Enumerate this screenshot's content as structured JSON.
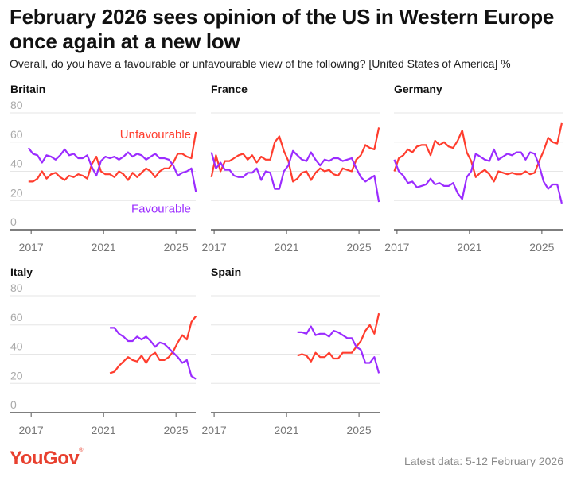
{
  "title": "February 2026 sees opinion of the US in Western Europe once again at a new low",
  "subtitle": "Overall, do you have a favourable or unfavourable view of the following? [United States of America] %",
  "logo": "YouGov",
  "footer": "Latest data: 5-12 February 2026",
  "colors": {
    "unfavourable": "#ff3d2e",
    "favourable": "#9b2cff",
    "grid": "#e6e6e6",
    "axis": "#555555",
    "tick_label": "#aaaaaa"
  },
  "chart_data": [
    {
      "type": "line",
      "title": "Britain",
      "ylim": [
        0,
        80
      ],
      "yticks": [
        "0",
        "20",
        "40",
        "60",
        "80"
      ],
      "xticks": [
        "2017",
        "2021",
        "2025"
      ],
      "grid": true,
      "annotations": {
        "unfavourable": "Unfavourable",
        "favourable": "Favourable"
      },
      "x": [
        2016.85,
        2017.1,
        2017.35,
        2017.6,
        2017.85,
        2018.1,
        2018.35,
        2018.6,
        2018.85,
        2019.1,
        2019.35,
        2019.6,
        2019.85,
        2020.1,
        2020.35,
        2020.6,
        2020.85,
        2021.1,
        2021.35,
        2021.6,
        2021.85,
        2022.1,
        2022.35,
        2022.6,
        2022.85,
        2023.1,
        2023.35,
        2023.6,
        2023.85,
        2024.1,
        2024.35,
        2024.6,
        2024.85,
        2025.1,
        2025.35,
        2025.6,
        2025.85,
        2026.1
      ],
      "series": [
        {
          "name": "Unfavourable",
          "values": [
            33,
            33,
            35,
            40,
            35,
            38,
            39,
            36,
            34,
            37,
            36,
            38,
            37,
            35,
            45,
            50,
            40,
            38,
            38,
            36,
            40,
            38,
            34,
            39,
            36,
            39,
            42,
            40,
            36,
            40,
            42,
            42,
            46,
            52,
            52,
            50,
            49,
            67
          ]
        },
        {
          "name": "Favourable",
          "values": [
            56,
            52,
            51,
            46,
            51,
            50,
            48,
            51,
            55,
            51,
            52,
            49,
            49,
            51,
            43,
            37,
            47,
            50,
            49,
            50,
            48,
            50,
            53,
            50,
            52,
            51,
            48,
            50,
            52,
            49,
            49,
            48,
            44,
            37,
            39,
            40,
            42,
            26
          ]
        }
      ]
    },
    {
      "type": "line",
      "title": "France",
      "ylim": [
        0,
        80
      ],
      "xticks": [
        "2017",
        "2021",
        "2025"
      ],
      "grid": true,
      "x": [
        2016.85,
        2017.1,
        2017.35,
        2017.6,
        2017.85,
        2018.1,
        2018.35,
        2018.6,
        2018.85,
        2019.1,
        2019.35,
        2019.6,
        2019.85,
        2020.1,
        2020.35,
        2020.6,
        2020.85,
        2021.1,
        2021.35,
        2021.6,
        2021.85,
        2022.1,
        2022.35,
        2022.6,
        2022.85,
        2023.1,
        2023.35,
        2023.6,
        2023.85,
        2024.1,
        2024.35,
        2024.6,
        2024.85,
        2025.1,
        2025.35,
        2025.6,
        2025.85,
        2026.1
      ],
      "series": [
        {
          "name": "Unfavourable",
          "values": [
            36,
            51,
            40,
            47,
            47,
            49,
            51,
            52,
            48,
            51,
            46,
            50,
            48,
            48,
            60,
            64,
            54,
            47,
            33,
            35,
            39,
            40,
            34,
            39,
            42,
            40,
            41,
            38,
            37,
            42,
            41,
            40,
            48,
            51,
            58,
            56,
            55,
            70
          ]
        },
        {
          "name": "Favourable",
          "values": [
            53,
            42,
            46,
            41,
            41,
            37,
            36,
            36,
            39,
            39,
            42,
            34,
            40,
            39,
            28,
            28,
            40,
            44,
            54,
            51,
            48,
            47,
            53,
            48,
            44,
            48,
            47,
            49,
            49,
            47,
            48,
            49,
            42,
            36,
            33,
            35,
            37,
            19
          ]
        }
      ]
    },
    {
      "type": "line",
      "title": "Germany",
      "ylim": [
        0,
        80
      ],
      "xticks": [
        "2017",
        "2021",
        "2025"
      ],
      "grid": true,
      "x": [
        2016.85,
        2017.1,
        2017.35,
        2017.6,
        2017.85,
        2018.1,
        2018.35,
        2018.6,
        2018.85,
        2019.1,
        2019.35,
        2019.6,
        2019.85,
        2020.1,
        2020.35,
        2020.6,
        2020.85,
        2021.1,
        2021.35,
        2021.6,
        2021.85,
        2022.1,
        2022.35,
        2022.6,
        2022.85,
        2023.1,
        2023.35,
        2023.6,
        2023.85,
        2024.1,
        2024.35,
        2024.6,
        2024.85,
        2025.1,
        2025.35,
        2025.6,
        2025.85,
        2026.1
      ],
      "series": [
        {
          "name": "Unfavourable",
          "values": [
            40,
            49,
            51,
            55,
            53,
            57,
            58,
            58,
            51,
            61,
            58,
            60,
            57,
            56,
            61,
            68,
            53,
            47,
            36,
            39,
            41,
            38,
            33,
            40,
            39,
            38,
            39,
            38,
            38,
            40,
            38,
            39,
            47,
            54,
            63,
            60,
            59,
            73
          ]
        },
        {
          "name": "Favourable",
          "values": [
            48,
            40,
            37,
            32,
            33,
            29,
            30,
            31,
            35,
            31,
            32,
            30,
            30,
            32,
            25,
            21,
            36,
            40,
            52,
            50,
            48,
            47,
            55,
            48,
            50,
            52,
            51,
            53,
            53,
            48,
            53,
            52,
            44,
            33,
            28,
            31,
            31,
            18
          ]
        }
      ]
    },
    {
      "type": "line",
      "title": "Italy",
      "ylim": [
        0,
        80
      ],
      "yticks": [
        "0",
        "20",
        "40",
        "60",
        "80"
      ],
      "xticks": [
        "2017",
        "2021",
        "2025"
      ],
      "grid": true,
      "x": [
        2021.35,
        2021.6,
        2021.85,
        2022.1,
        2022.35,
        2022.6,
        2022.85,
        2023.1,
        2023.35,
        2023.6,
        2023.85,
        2024.1,
        2024.35,
        2024.6,
        2024.85,
        2025.1,
        2025.35,
        2025.6,
        2025.85,
        2026.1
      ],
      "series": [
        {
          "name": "Unfavourable",
          "values": [
            27,
            28,
            32,
            35,
            38,
            36,
            35,
            39,
            34,
            39,
            41,
            36,
            36,
            38,
            42,
            48,
            53,
            50,
            62,
            66
          ]
        },
        {
          "name": "Favourable",
          "values": [
            58,
            58,
            54,
            52,
            49,
            49,
            52,
            50,
            52,
            49,
            45,
            48,
            47,
            44,
            41,
            38,
            34,
            36,
            25,
            23
          ]
        }
      ]
    },
    {
      "type": "line",
      "title": "Spain",
      "ylim": [
        0,
        80
      ],
      "xticks": [
        "2017",
        "2021",
        "2025"
      ],
      "grid": true,
      "x": [
        2021.6,
        2021.85,
        2022.1,
        2022.35,
        2022.6,
        2022.85,
        2023.1,
        2023.35,
        2023.6,
        2023.85,
        2024.1,
        2024.35,
        2024.6,
        2024.85,
        2025.1,
        2025.35,
        2025.6,
        2025.85,
        2026.1
      ],
      "series": [
        {
          "name": "Unfavourable",
          "values": [
            39,
            40,
            39,
            35,
            41,
            38,
            38,
            41,
            37,
            37,
            41,
            41,
            41,
            45,
            49,
            56,
            60,
            54,
            68
          ]
        },
        {
          "name": "Favourable",
          "values": [
            55,
            55,
            54,
            59,
            53,
            54,
            54,
            52,
            56,
            55,
            53,
            51,
            51,
            45,
            43,
            34,
            34,
            38,
            27
          ]
        }
      ]
    }
  ]
}
